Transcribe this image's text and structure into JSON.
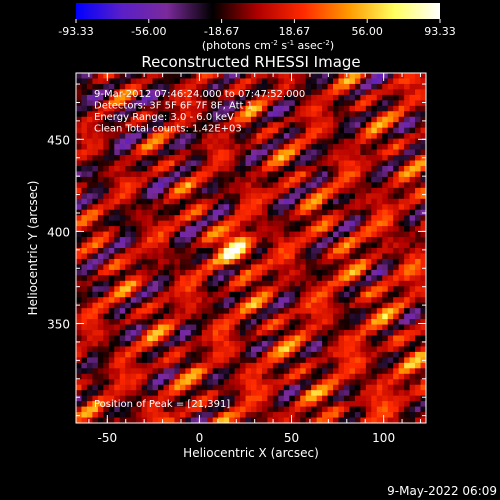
{
  "colorbar": {
    "ticks": [
      "-93.33",
      "-56.00",
      "-18.67",
      "18.67",
      "56.00",
      "93.33"
    ],
    "range": [
      -93.33,
      93.33
    ],
    "units_parts": [
      "(photons cm",
      "-2",
      " s",
      "-1",
      " asec",
      "-2",
      ")"
    ],
    "colormap": [
      "#0000ff",
      "#5a1fc8",
      "#7a2a9a",
      "#000000",
      "#b00000",
      "#ff2a00",
      "#ff9a00",
      "#ffff60",
      "#ffffff"
    ]
  },
  "chart_data": {
    "type": "heatmap",
    "title": "Reconstructed RHESSI Image",
    "xlabel": "Heliocentric X (arcsec)",
    "ylabel": "Heliocentric Y (arcsec)",
    "xlim": [
      -67,
      123
    ],
    "ylim": [
      296,
      486
    ],
    "x_ticks": [
      -50,
      0,
      50,
      100
    ],
    "y_ticks": [
      350,
      400,
      450
    ],
    "annotations": [
      "9-Mar-2012 07:46:24.000 to 07:47:52.000",
      "Detectors: 3F 5F 6F 7F 8F, Att 1",
      "Energy Range: 3.0 - 6.0 keV",
      "Clean     Total counts: 1.42E+03"
    ],
    "peak_label": "Position of Peak = [21,391]",
    "peak": {
      "x": 21,
      "y": 391,
      "value": 93.33
    }
  },
  "footer": {
    "date": "9-May-2022 06:09"
  }
}
